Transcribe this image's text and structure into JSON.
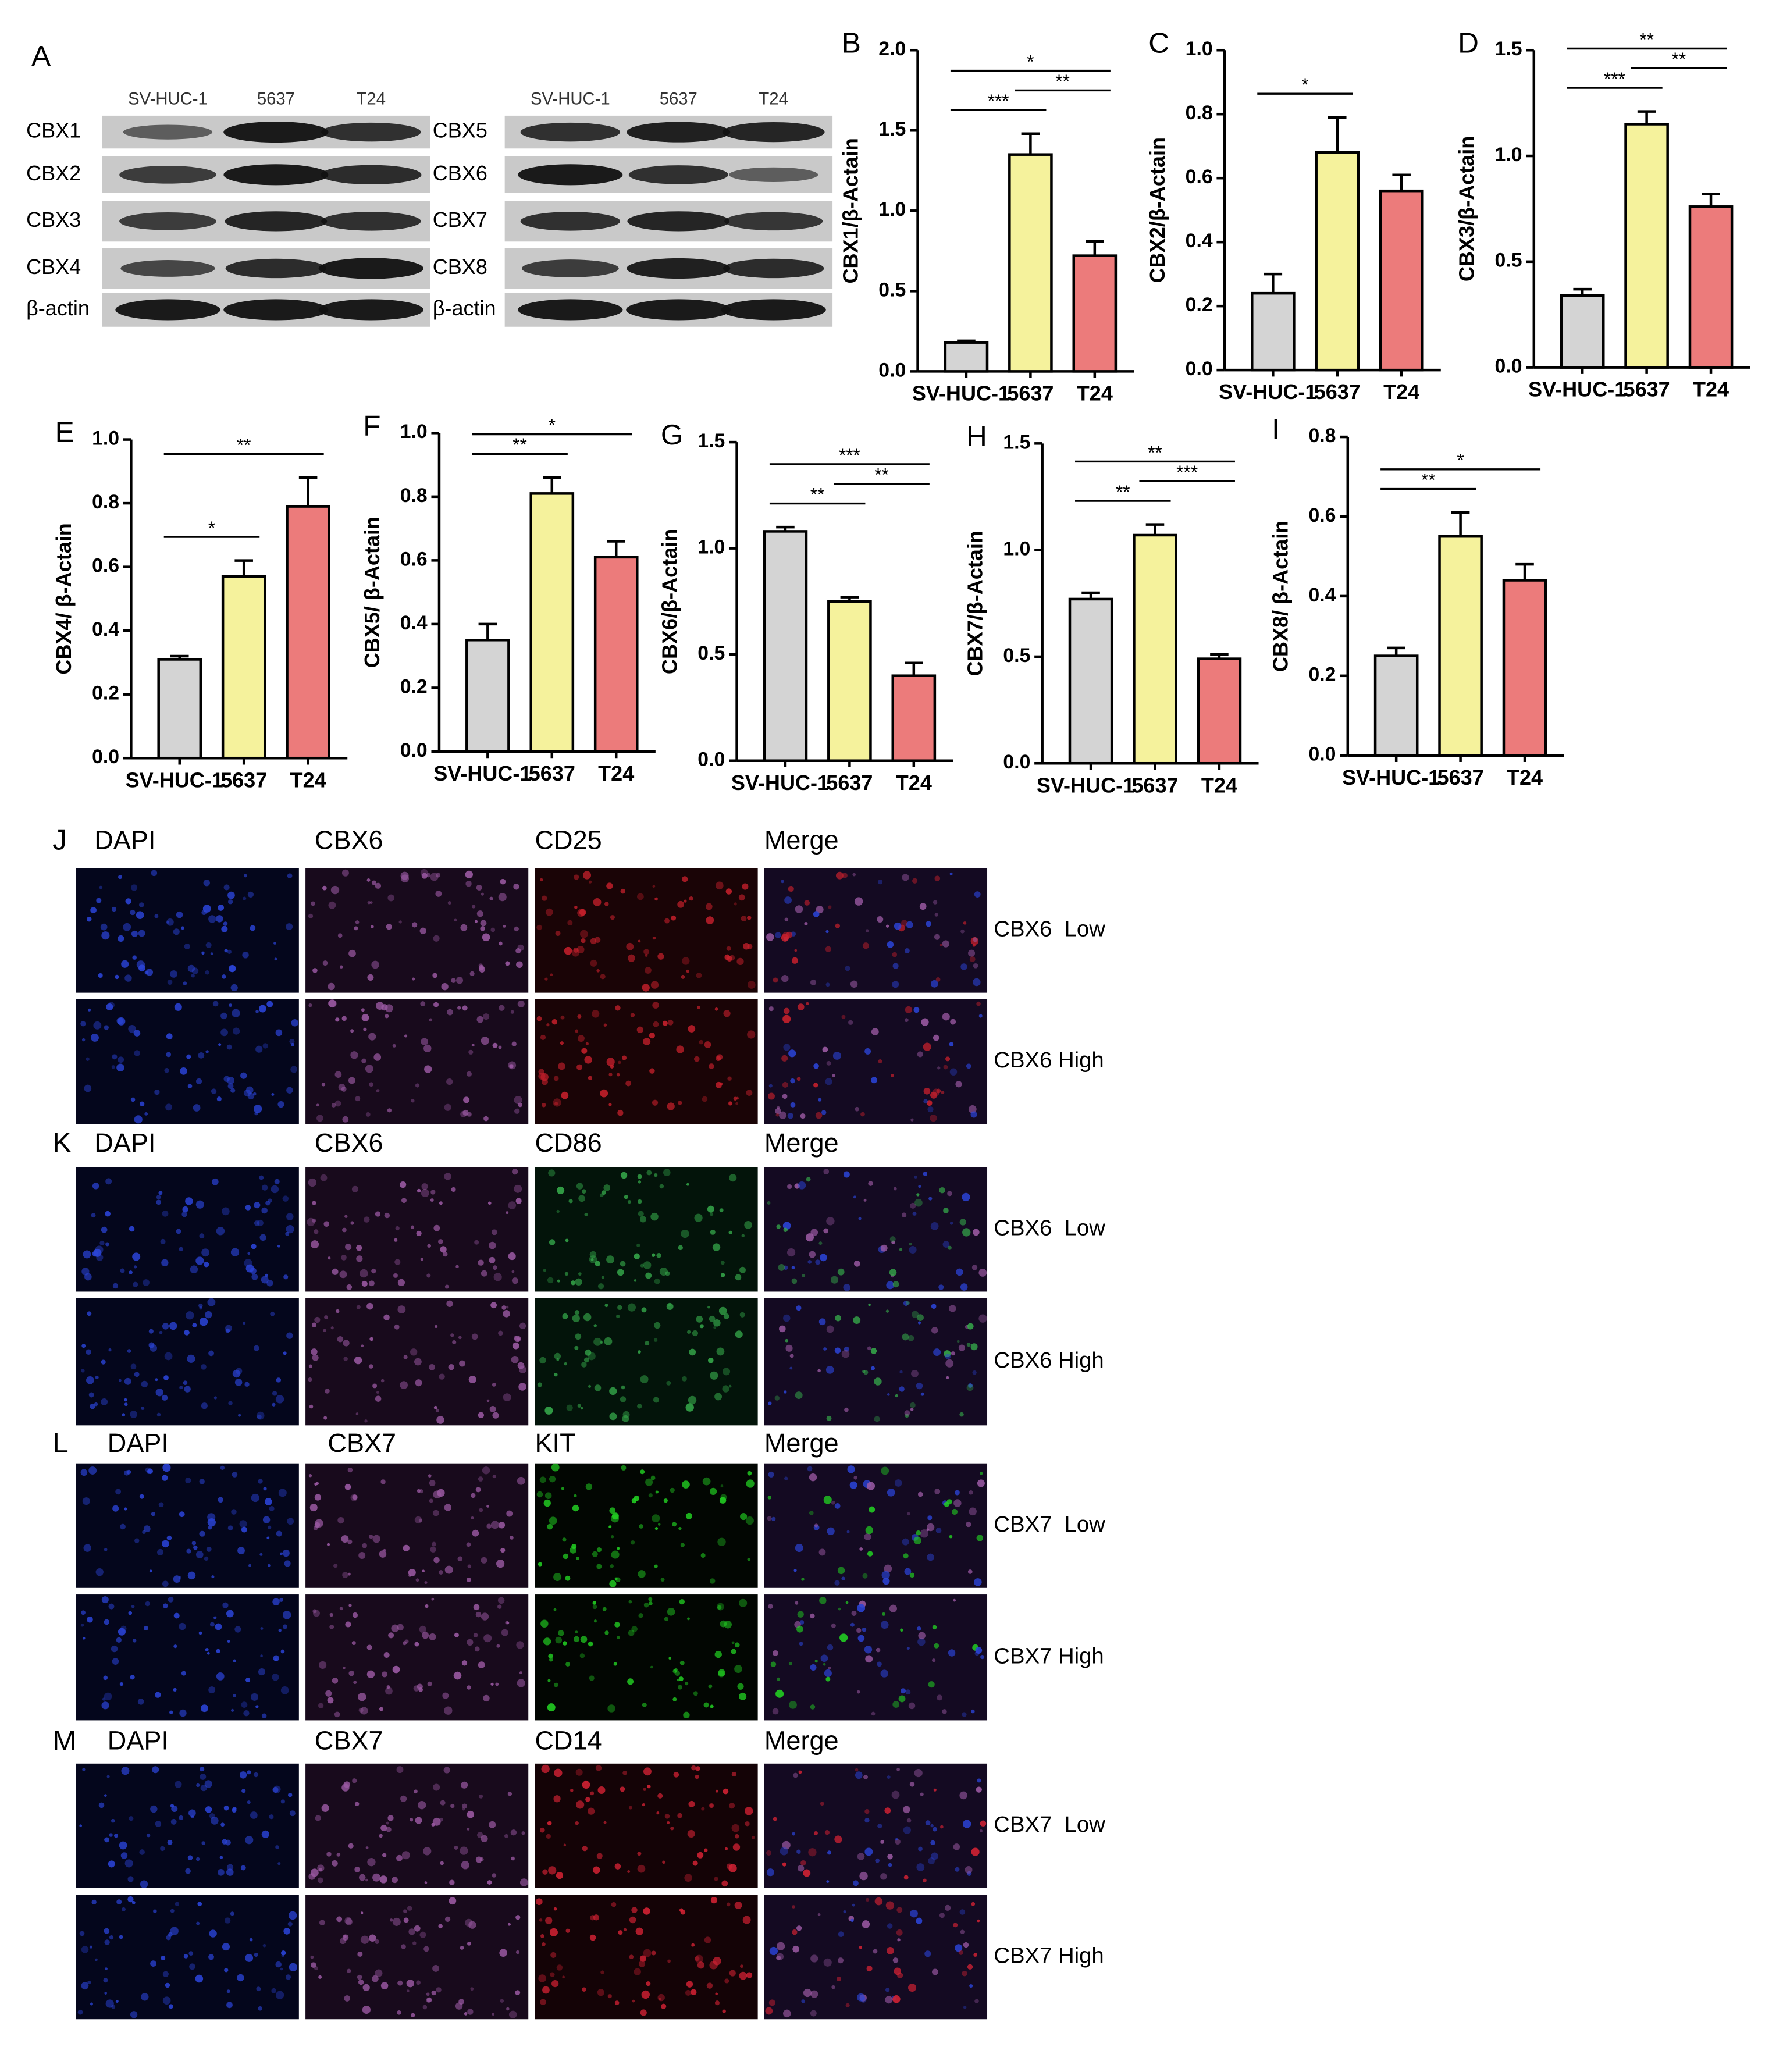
{
  "western_blot": {
    "panel": "A",
    "blots": [
      {
        "lanes": [
          "SV-HUC-1",
          "5637",
          "T24"
        ],
        "proteins": [
          "CBX1",
          "CBX2",
          "CBX3",
          "CBX4",
          "β-actin"
        ]
      },
      {
        "lanes": [
          "SV-HUC-1",
          "5637",
          "T24"
        ],
        "proteins": [
          "CBX5",
          "CBX6",
          "CBX7",
          "CBX8",
          "β-actin"
        ]
      }
    ]
  },
  "chart_data": [
    {
      "type": "bar",
      "panel": "B",
      "ylabel": "CBX1/β-Actain",
      "categories": [
        "SV-HUC-1",
        "5637",
        "T24"
      ],
      "values": [
        0.18,
        1.35,
        0.72
      ],
      "errors": [
        0.01,
        0.13,
        0.09
      ],
      "colors": [
        "#d4d4d4",
        "#f5f29c",
        "#ec7b7b"
      ],
      "ylim": [
        0,
        2
      ],
      "yticks": [
        {
          "value": 0,
          "label": "0.0"
        },
        0.5,
        {
          "value": 1,
          "label": "1.0"
        },
        1.5,
        {
          "value": 2,
          "label": "2.0"
        }
      ],
      "significance": [
        {
          "text": "*",
          "groups": [
            "SV-HUC-1",
            "T24"
          ]
        },
        {
          "text": "***",
          "groups": [
            "SV-HUC-1",
            "5637"
          ]
        },
        {
          "text": "**",
          "groups": [
            "5637",
            "T24"
          ]
        }
      ]
    },
    {
      "type": "bar",
      "panel": "C",
      "ylabel": "CBX2/β-Actain",
      "categories": [
        "SV-HUC-1",
        "5637",
        "T24"
      ],
      "values": [
        0.24,
        0.68,
        0.56
      ],
      "errors": [
        0.06,
        0.11,
        0.05
      ],
      "colors": [
        "#d4d4d4",
        "#f5f29c",
        "#ec7b7b"
      ],
      "ylim": [
        0,
        1
      ],
      "yticks": [
        {
          "value": 0,
          "label": "0.0"
        },
        0.2,
        0.4,
        0.6,
        0.8,
        {
          "value": 1,
          "label": "1.0"
        }
      ],
      "significance": [
        {
          "text": "*",
          "groups": [
            "SV-HUC-1",
            "5637"
          ]
        }
      ]
    },
    {
      "type": "bar",
      "panel": "D",
      "ylabel": "CBX3/β-Actain",
      "categories": [
        "SV-HUC-1",
        "5637",
        "T24"
      ],
      "values": [
        0.34,
        1.15,
        0.76
      ],
      "errors": [
        0.03,
        0.06,
        0.06
      ],
      "colors": [
        "#d4d4d4",
        "#f5f29c",
        "#ec7b7b"
      ],
      "ylim": [
        0,
        1.5
      ],
      "yticks": [
        {
          "value": 0,
          "label": "0.0"
        },
        0.5,
        {
          "value": 1,
          "label": "1.0"
        },
        1.5
      ],
      "significance": [
        {
          "text": "**",
          "groups": [
            "SV-HUC-1",
            "T24"
          ]
        },
        {
          "text": "***",
          "groups": [
            "SV-HUC-1",
            "5637"
          ]
        },
        {
          "text": "**",
          "groups": [
            "5637",
            "T24"
          ]
        }
      ]
    },
    {
      "type": "bar",
      "panel": "E",
      "ylabel": "CBX4/ β-Actain",
      "categories": [
        "SV-HUC-1",
        "5637",
        "T24"
      ],
      "values": [
        0.31,
        0.57,
        0.79
      ],
      "errors": [
        0.01,
        0.05,
        0.09
      ],
      "colors": [
        "#d4d4d4",
        "#f5f29c",
        "#ec7b7b"
      ],
      "ylim": [
        0,
        1
      ],
      "yticks": [
        {
          "value": 0,
          "label": "0.0"
        },
        0.2,
        0.4,
        0.6,
        0.8,
        {
          "value": 1,
          "label": "1.0"
        }
      ],
      "significance": [
        {
          "text": "**",
          "groups": [
            "SV-HUC-1",
            "T24"
          ]
        },
        {
          "text": "*",
          "groups": [
            "SV-HUC-1",
            "5637"
          ]
        }
      ]
    },
    {
      "type": "bar",
      "panel": "F",
      "ylabel": "CBX5/ β-Actain",
      "categories": [
        "SV-HUC-1",
        "5637",
        "T24"
      ],
      "values": [
        0.35,
        0.81,
        0.61
      ],
      "errors": [
        0.05,
        0.05,
        0.05
      ],
      "colors": [
        "#d4d4d4",
        "#f5f29c",
        "#ec7b7b"
      ],
      "ylim": [
        0,
        1
      ],
      "yticks": [
        {
          "value": 0,
          "label": "0.0"
        },
        0.2,
        0.4,
        0.6,
        0.8,
        {
          "value": 1,
          "label": "1.0"
        }
      ],
      "significance": [
        {
          "text": "*",
          "groups": [
            "SV-HUC-1",
            "T24"
          ]
        },
        {
          "text": "**",
          "groups": [
            "SV-HUC-1",
            "5637"
          ]
        }
      ]
    },
    {
      "type": "bar",
      "panel": "G",
      "ylabel": "CBX6/β-Actain",
      "categories": [
        "SV-HUC-1",
        "5637",
        "T24"
      ],
      "values": [
        1.08,
        0.75,
        0.4
      ],
      "errors": [
        0.02,
        0.02,
        0.06
      ],
      "colors": [
        "#d4d4d4",
        "#f5f29c",
        "#ec7b7b"
      ],
      "ylim": [
        0,
        1.5
      ],
      "yticks": [
        {
          "value": 0,
          "label": "0.0"
        },
        0.5,
        {
          "value": 1,
          "label": "1.0"
        },
        1.5
      ],
      "significance": [
        {
          "text": "***",
          "groups": [
            "SV-HUC-1",
            "T24"
          ]
        },
        {
          "text": "**",
          "groups": [
            "SV-HUC-1",
            "5637"
          ]
        },
        {
          "text": "**",
          "groups": [
            "5637",
            "T24"
          ]
        }
      ]
    },
    {
      "type": "bar",
      "panel": "H",
      "ylabel": "CBX7/β-Actain",
      "categories": [
        "SV-HUC-1",
        "5637",
        "T24"
      ],
      "values": [
        0.77,
        1.07,
        0.49
      ],
      "errors": [
        0.03,
        0.05,
        0.02
      ],
      "colors": [
        "#d4d4d4",
        "#f5f29c",
        "#ec7b7b"
      ],
      "ylim": [
        0,
        1.5
      ],
      "yticks": [
        {
          "value": 0,
          "label": "0.0"
        },
        0.5,
        {
          "value": 1,
          "label": "1.0"
        },
        1.5
      ],
      "significance": [
        {
          "text": "**",
          "groups": [
            "SV-HUC-1",
            "T24"
          ]
        },
        {
          "text": "**",
          "groups": [
            "SV-HUC-1",
            "5637"
          ]
        },
        {
          "text": "***",
          "groups": [
            "5637",
            "T24"
          ]
        }
      ]
    },
    {
      "type": "bar",
      "panel": "I",
      "ylabel": "CBX8/ β-Actain",
      "categories": [
        "SV-HUC-1",
        "5637",
        "T24"
      ],
      "values": [
        0.25,
        0.55,
        0.44
      ],
      "errors": [
        0.02,
        0.06,
        0.04
      ],
      "colors": [
        "#d4d4d4",
        "#f5f29c",
        "#ec7b7b"
      ],
      "ylim": [
        0,
        0.8
      ],
      "yticks": [
        {
          "value": 0,
          "label": "0.0"
        },
        0.2,
        0.4,
        0.6,
        0.8
      ],
      "significance": [
        {
          "text": "*",
          "groups": [
            "SV-HUC-1",
            "T24"
          ]
        },
        {
          "text": "**",
          "groups": [
            "SV-HUC-1",
            "5637"
          ]
        }
      ]
    }
  ],
  "immunofluorescence": [
    {
      "panel": "J",
      "channels": [
        "DAPI",
        "CBX6",
        "CD25",
        "Merge"
      ],
      "rows": [
        "CBX6  Low",
        "CBX6 High"
      ]
    },
    {
      "panel": "K",
      "channels": [
        "DAPI",
        "CBX6",
        "CD86",
        "Merge"
      ],
      "rows": [
        "CBX6  Low",
        "CBX6 High"
      ]
    },
    {
      "panel": "L",
      "channels": [
        "DAPI",
        "CBX7",
        "KIT",
        "Merge"
      ],
      "rows": [
        "CBX7  Low",
        "CBX7 High"
      ]
    },
    {
      "panel": "M",
      "channels": [
        "DAPI",
        "CBX7",
        "CD14",
        "Merge"
      ],
      "rows": [
        "CBX7  Low",
        "CBX7 High"
      ]
    }
  ]
}
